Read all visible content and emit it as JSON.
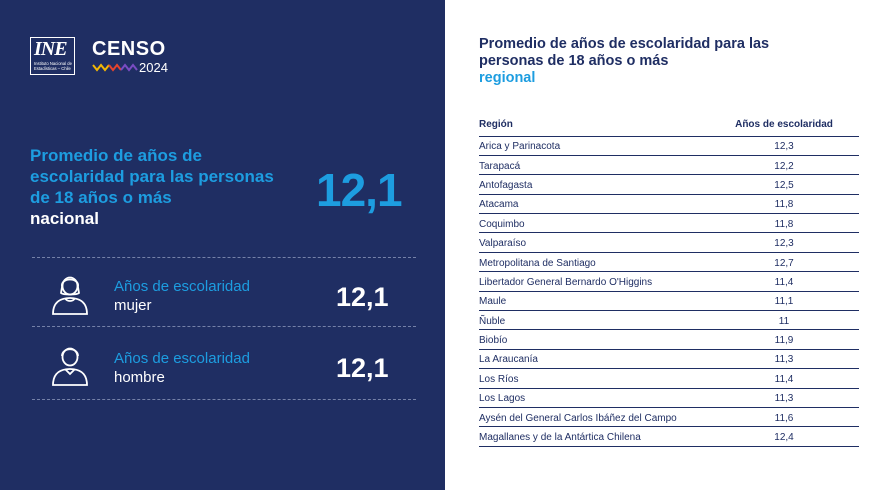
{
  "logo": {
    "ine_mark": "INE",
    "ine_subtext": [
      "Instituto Nacional de",
      "Estadísticas – Chile"
    ],
    "censo_word": "CENSO",
    "censo_year": "2024"
  },
  "national": {
    "title_main": "Promedio de años de escolaridad para las personas de 18 años o más",
    "title_tail": "nacional",
    "value": "12,1"
  },
  "categories": [
    {
      "label": "Años de escolaridad",
      "sub": "mujer",
      "value": "12,1"
    },
    {
      "label": "Años de escolaridad",
      "sub": "hombre",
      "value": "12,1"
    }
  ],
  "regional": {
    "title_main": "Promedio de años de escolaridad para las personas de 18 años o más",
    "title_tail": "regional",
    "col_region": "Región",
    "col_value": "Años de escolaridad",
    "rows": [
      {
        "region": "Arica y Parinacota",
        "value": "12,3"
      },
      {
        "region": "Tarapacá",
        "value": "12,2"
      },
      {
        "region": "Antofagasta",
        "value": "12,5"
      },
      {
        "region": "Atacama",
        "value": "11,8"
      },
      {
        "region": "Coquimbo",
        "value": "11,8"
      },
      {
        "region": "Valparaíso",
        "value": "12,3"
      },
      {
        "region": "Metropolitana de Santiago",
        "value": "12,7"
      },
      {
        "region": "Libertador General Bernardo O'Higgins",
        "value": "11,4"
      },
      {
        "region": "Maule",
        "value": "11,1"
      },
      {
        "region": "Ñuble",
        "value": "11"
      },
      {
        "region": "Biobío",
        "value": "11,9"
      },
      {
        "region": "La Araucanía",
        "value": "11,3"
      },
      {
        "region": "Los Ríos",
        "value": "11,4"
      },
      {
        "region": "Los Lagos",
        "value": "11,3"
      },
      {
        "region": "Aysén del General Carlos Ibáñez del Campo",
        "value": "11,6"
      },
      {
        "region": "Magallanes y de la Antártica Chilena",
        "value": "12,4"
      }
    ]
  },
  "colors": {
    "panel": "#1f2e63",
    "accent": "#1d9de0",
    "text_light": "#ffffff"
  }
}
